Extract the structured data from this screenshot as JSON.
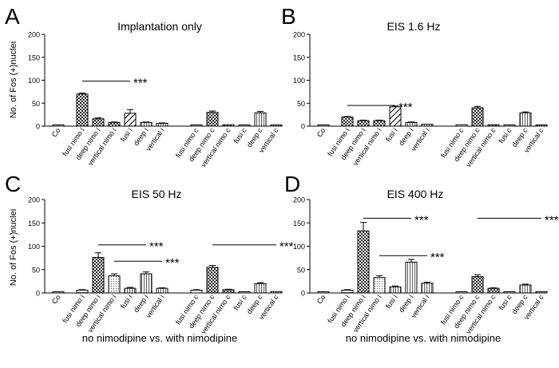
{
  "figure": {
    "ylabel": "No. of Fos (+)nuclei",
    "xlabel": "no nimodipine vs. with nimodipine"
  },
  "chart_data": [
    {
      "type": "bar",
      "panel_letter": "A",
      "title": "Implantation only",
      "ylabel": "No. of Fos (+)nuclei",
      "xlabel": "",
      "ylim": [
        0,
        200
      ],
      "yticks": [
        0,
        50,
        100,
        150,
        200
      ],
      "categories": [
        "Co",
        "fusi nimo i",
        "deep nimo i",
        "vertical nimo i",
        "fusi i",
        "deep i",
        "vertical i",
        "fusi nimo c",
        "deep nimo c",
        "vertical nimo c",
        "fusi c",
        "deep c",
        "vertical c"
      ],
      "values": [
        1,
        70,
        16,
        8,
        28,
        8,
        6,
        2,
        30,
        3,
        1,
        29,
        2
      ],
      "errors": [
        0,
        2,
        2,
        1,
        8,
        1,
        1,
        0,
        3,
        0,
        0,
        3,
        0
      ],
      "patterns": [
        "white",
        "check",
        "check",
        "check",
        "diag",
        "vline",
        "vline",
        "white",
        "check",
        "check",
        "white",
        "vline",
        "vline"
      ],
      "significance": [
        {
          "from": 1,
          "to": 4,
          "label": "***",
          "y": 98
        }
      ]
    },
    {
      "type": "bar",
      "panel_letter": "B",
      "title": "EIS 1.6 Hz",
      "ylabel": "",
      "xlabel": "",
      "ylim": [
        0,
        200
      ],
      "yticks": [
        0,
        50,
        100,
        150,
        200
      ],
      "categories": [
        "Co",
        "fusi nimo i",
        "deep nimo i",
        "vertical nimo i",
        "fusi i",
        "deep i",
        "vertical i",
        "fusi nimo c",
        "deep nimo c",
        "vertical nimo c",
        "fusi c",
        "deep c",
        "vertical c"
      ],
      "values": [
        1,
        20,
        12,
        12,
        42,
        8,
        4,
        3,
        40,
        3,
        1,
        29,
        2
      ],
      "errors": [
        0,
        1,
        1,
        1,
        2,
        1,
        0,
        0,
        3,
        0,
        0,
        2,
        0
      ],
      "patterns": [
        "white",
        "check",
        "check",
        "check",
        "diag",
        "vline",
        "vline",
        "white",
        "check",
        "check",
        "white",
        "vline",
        "vline"
      ],
      "significance": [
        {
          "from": 1,
          "to": 4,
          "label": "***",
          "y": 45
        }
      ]
    },
    {
      "type": "bar",
      "panel_letter": "C",
      "title": "EIS 50 Hz",
      "ylabel": "No. of Fos (+)nuclei",
      "xlabel": "no nimodipine vs. with nimodipine",
      "ylim": [
        0,
        200
      ],
      "yticks": [
        0,
        50,
        100,
        150,
        200
      ],
      "categories": [
        "Co",
        "fusi nimo i",
        "deep nimo i",
        "vertical nimo i",
        "fusi i",
        "deep i",
        "vertical i",
        "fusi nimo c",
        "deep nimo c",
        "vertical nimo c",
        "fusi c",
        "deep c",
        "vertical c"
      ],
      "values": [
        1,
        6,
        76,
        37,
        10,
        41,
        10,
        6,
        55,
        7,
        2,
        20,
        3
      ],
      "errors": [
        0,
        1,
        10,
        4,
        2,
        4,
        1,
        1,
        4,
        1,
        0,
        2,
        0
      ],
      "patterns": [
        "white",
        "hline",
        "check",
        "dot",
        "vline",
        "vline",
        "vline",
        "white",
        "check",
        "check",
        "white",
        "vline",
        "vline"
      ],
      "significance": [
        {
          "from": 2,
          "to": 5,
          "label": "***",
          "y": 103
        },
        {
          "from": 3,
          "to": 6,
          "label": "***",
          "y": 68
        },
        {
          "from": 8,
          "to": 12,
          "label": "***",
          "y": 103
        }
      ]
    },
    {
      "type": "bar",
      "panel_letter": "D",
      "title": "EIS 400 Hz",
      "ylabel": "",
      "xlabel": "no nimodipine vs. with nimodipine",
      "ylim": [
        0,
        200
      ],
      "yticks": [
        0,
        50,
        100,
        150,
        200
      ],
      "categories": [
        "Co",
        "fusi nimo i",
        "deep nimo i",
        "vertical nimo i",
        "fusi i",
        "deep i",
        "vertical i",
        "fusi nimo c",
        "deep nimo c",
        "vertical nimo c",
        "fusi c",
        "deep c",
        "vertical c"
      ],
      "values": [
        1,
        6,
        133,
        33,
        13,
        66,
        21,
        2,
        35,
        10,
        1,
        17,
        3
      ],
      "errors": [
        0,
        1,
        18,
        4,
        2,
        6,
        2,
        0,
        4,
        1,
        0,
        2,
        0
      ],
      "patterns": [
        "white",
        "hline",
        "check",
        "dot",
        "vline",
        "vline",
        "vline",
        "white",
        "check",
        "check",
        "white",
        "vline",
        "vline"
      ],
      "significance": [
        {
          "from": 2,
          "to": 5,
          "label": "***",
          "y": 160
        },
        {
          "from": 3,
          "to": 6,
          "label": "***",
          "y": 80
        },
        {
          "from": 8,
          "to": 12,
          "label": "***",
          "y": 160
        }
      ]
    }
  ]
}
